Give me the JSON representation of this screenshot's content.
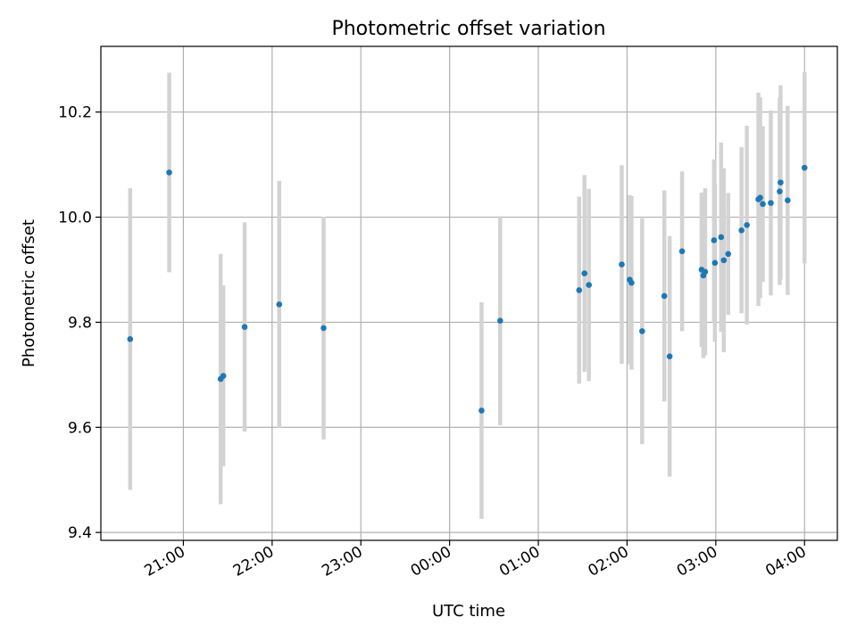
{
  "chart_data": {
    "type": "scatter",
    "title": "Photometric offset variation",
    "xlabel": "UTC time",
    "ylabel": "Photometric offset",
    "x_unit": "UTC time (hours; values after midnight continue past 24)",
    "xlim": [
      20.07,
      28.37
    ],
    "ylim": [
      9.385,
      10.325
    ],
    "x_ticks": [
      {
        "value": 21,
        "label": "21:00"
      },
      {
        "value": 22,
        "label": "22:00"
      },
      {
        "value": 23,
        "label": "23:00"
      },
      {
        "value": 24,
        "label": "00:00"
      },
      {
        "value": 25,
        "label": "01:00"
      },
      {
        "value": 26,
        "label": "02:00"
      },
      {
        "value": 27,
        "label": "03:00"
      },
      {
        "value": 28,
        "label": "04:00"
      }
    ],
    "y_ticks": [
      {
        "value": 9.4,
        "label": "9.4"
      },
      {
        "value": 9.6,
        "label": "9.6"
      },
      {
        "value": 9.8,
        "label": "9.8"
      },
      {
        "value": 10.0,
        "label": "10.0"
      },
      {
        "value": 10.2,
        "label": "10.2"
      }
    ],
    "grid": true,
    "marker_color": "#1f77b4",
    "errorbar_color": "#d3d3d3",
    "points": [
      {
        "x": 20.4,
        "y": 9.768,
        "err": 0.287
      },
      {
        "x": 20.84,
        "y": 10.085,
        "err": 0.19
      },
      {
        "x": 21.42,
        "y": 9.692,
        "err": 0.238
      },
      {
        "x": 21.45,
        "y": 9.698,
        "err": 0.172
      },
      {
        "x": 21.69,
        "y": 9.791,
        "err": 0.199
      },
      {
        "x": 22.08,
        "y": 9.834,
        "err": 0.235
      },
      {
        "x": 22.58,
        "y": 9.789,
        "err": 0.212
      },
      {
        "x": 24.36,
        "y": 9.632,
        "err": 0.206
      },
      {
        "x": 24.57,
        "y": 9.803,
        "err": 0.199
      },
      {
        "x": 25.46,
        "y": 9.861,
        "err": 0.178
      },
      {
        "x": 25.52,
        "y": 9.893,
        "err": 0.187
      },
      {
        "x": 25.57,
        "y": 9.871,
        "err": 0.183
      },
      {
        "x": 25.94,
        "y": 9.91,
        "err": 0.189
      },
      {
        "x": 26.03,
        "y": 9.881,
        "err": 0.161
      },
      {
        "x": 26.05,
        "y": 9.875,
        "err": 0.165
      },
      {
        "x": 26.17,
        "y": 9.783,
        "err": 0.215
      },
      {
        "x": 26.42,
        "y": 9.85,
        "err": 0.201
      },
      {
        "x": 26.48,
        "y": 9.735,
        "err": 0.229
      },
      {
        "x": 26.62,
        "y": 9.935,
        "err": 0.152
      },
      {
        "x": 26.84,
        "y": 9.9,
        "err": 0.147
      },
      {
        "x": 26.86,
        "y": 9.889,
        "err": 0.157
      },
      {
        "x": 26.88,
        "y": 9.896,
        "err": 0.159
      },
      {
        "x": 26.98,
        "y": 9.956,
        "err": 0.154
      },
      {
        "x": 26.99,
        "y": 9.913,
        "err": 0.15
      },
      {
        "x": 27.06,
        "y": 9.962,
        "err": 0.18
      },
      {
        "x": 27.09,
        "y": 9.918,
        "err": 0.175
      },
      {
        "x": 27.14,
        "y": 9.93,
        "err": 0.116
      },
      {
        "x": 27.29,
        "y": 9.975,
        "err": 0.158
      },
      {
        "x": 27.35,
        "y": 9.985,
        "err": 0.189
      },
      {
        "x": 27.48,
        "y": 10.034,
        "err": 0.203
      },
      {
        "x": 27.5,
        "y": 10.037,
        "err": 0.191
      },
      {
        "x": 27.53,
        "y": 10.025,
        "err": 0.148
      },
      {
        "x": 27.62,
        "y": 10.027,
        "err": 0.176
      },
      {
        "x": 27.72,
        "y": 10.049,
        "err": 0.178
      },
      {
        "x": 27.73,
        "y": 10.066,
        "err": 0.185
      },
      {
        "x": 27.81,
        "y": 10.032,
        "err": 0.18
      },
      {
        "x": 28.0,
        "y": 10.094,
        "err": 0.182
      }
    ]
  }
}
